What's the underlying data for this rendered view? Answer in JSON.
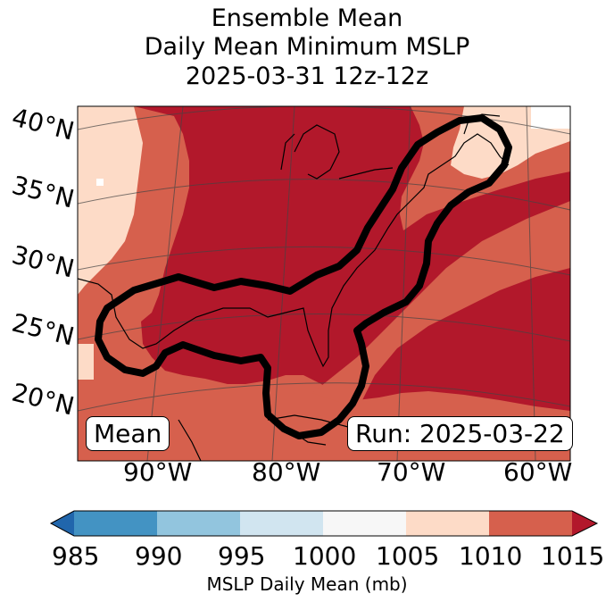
{
  "title": {
    "line1": "Ensemble Mean",
    "line2": "Daily Mean Minimum MSLP",
    "line3": "2025-03-31 12z-12z"
  },
  "map": {
    "lat_labels": [
      "40°N",
      "35°N",
      "30°N",
      "25°N",
      "20°N"
    ],
    "lon_labels": [
      "90°W",
      "80°W",
      "70°W",
      "60°W"
    ],
    "mean_box": "Mean",
    "run_box": "Run: 2025-03-22"
  },
  "colorbar": {
    "label": "MSLP Daily Mean (mb)",
    "ticks": [
      "985",
      "990",
      "995",
      "1000",
      "1005",
      "1010",
      "1015"
    ],
    "colors": {
      "below": "#2166ac",
      "c985": "#4393c3",
      "c990": "#92c5de",
      "c995": "#d1e5f0",
      "c1000": "#f7f7f7",
      "c1005": "#fddbc7",
      "c1010": "#d6604d",
      "above": "#b2182b"
    }
  },
  "colors": {
    "high": "#b2182b",
    "mid": "#d6604d",
    "low": "#fddbc7",
    "contour": "#000000"
  }
}
